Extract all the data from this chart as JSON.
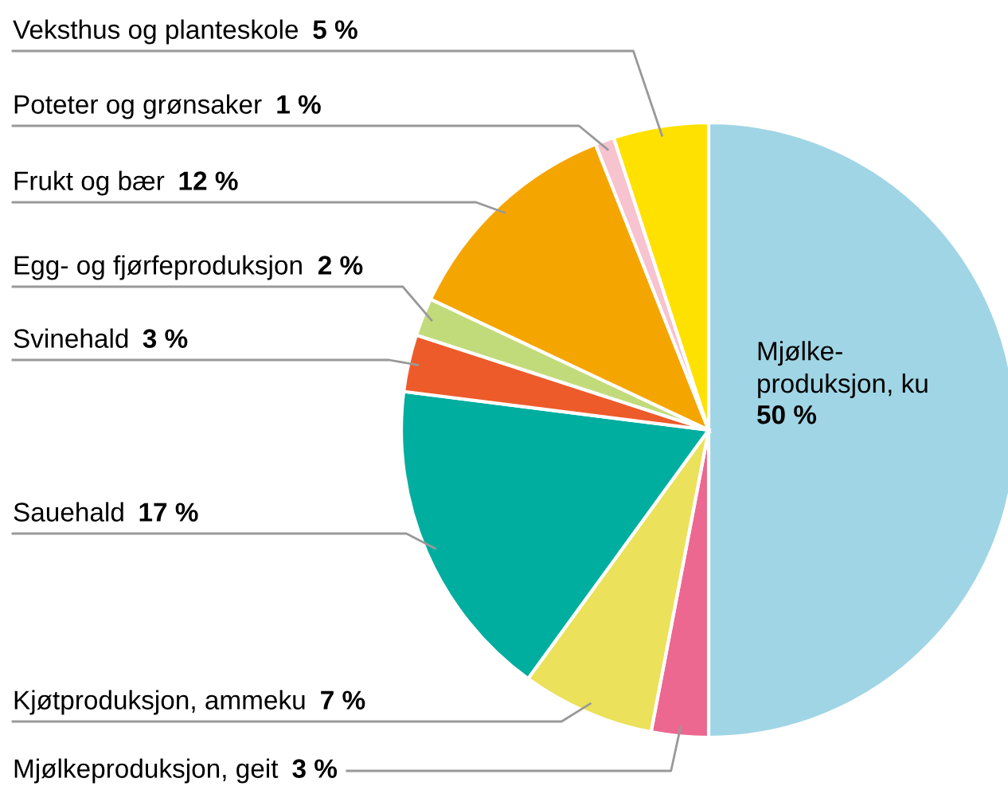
{
  "chart_data": {
    "type": "pie",
    "categories": [
      "Mjølke-\nproduksjon, ku",
      "Mjølkeproduksjon, geit",
      "Kjøtproduksjon, ammeku",
      "Sauehald",
      "Svinehald",
      "Egg- og fjørfeproduksjon",
      "Frukt og bær",
      "Poteter og grønsaker",
      "Veksthus og planteskole"
    ],
    "values": [
      50,
      3,
      7,
      17,
      3,
      2,
      12,
      1,
      5
    ],
    "value_labels": [
      "50 %",
      "3 %",
      "7 %",
      "17 %",
      "3 %",
      "2 %",
      "12 %",
      "1 %",
      "5 %"
    ],
    "colors": [
      "#a0d5e5",
      "#ec6891",
      "#ebe15a",
      "#00ae9f",
      "#ee5b2a",
      "#c2db7a",
      "#f5a500",
      "#f6c3cf",
      "#ffe100"
    ]
  }
}
